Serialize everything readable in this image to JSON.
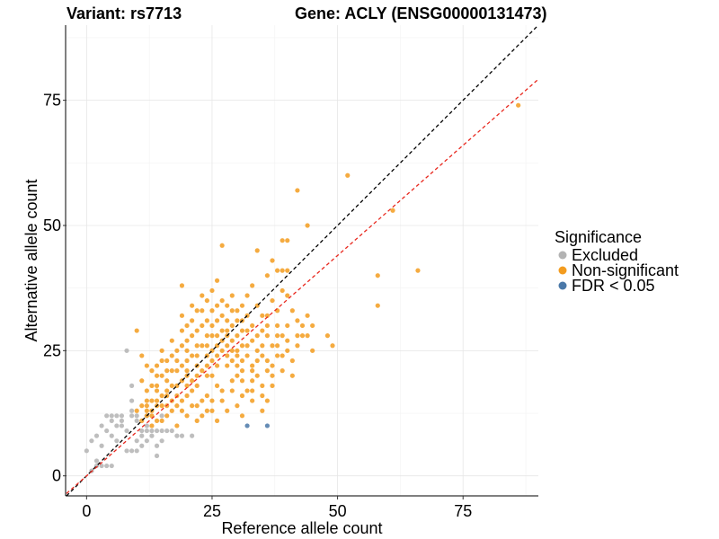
{
  "chart_data": {
    "type": "scatter",
    "title_left": "Variant: rs7713",
    "title_right": "Gene: ACLY (ENSG00000131473)",
    "xlabel": "Reference allele count",
    "ylabel": "Alternative allele count",
    "xlim": [
      -4,
      90
    ],
    "ylim": [
      -4,
      90
    ],
    "xticks": [
      0,
      25,
      50,
      75
    ],
    "yticks": [
      0,
      25,
      50,
      75
    ],
    "grid": true,
    "legend": {
      "title": "Significance",
      "position": "right",
      "entries": [
        {
          "label": "Excluded",
          "color": "#b3b3b3"
        },
        {
          "label": "Non-significant",
          "color": "#f39c1f"
        },
        {
          "label": "FDR < 0.05",
          "color": "#4a78a8"
        }
      ]
    },
    "reference_lines": [
      {
        "name": "identity",
        "slope": 1,
        "intercept": 0,
        "color": "#000000"
      },
      {
        "name": "fit",
        "slope": 0.88,
        "intercept": 0,
        "color": "#e8281e"
      }
    ],
    "series": [
      {
        "name": "Excluded",
        "color": "#b3b3b3",
        "points": [
          [
            0,
            5
          ],
          [
            1,
            7
          ],
          [
            2,
            3
          ],
          [
            2,
            8
          ],
          [
            3,
            10
          ],
          [
            3,
            6
          ],
          [
            4,
            12
          ],
          [
            4,
            9
          ],
          [
            5,
            11
          ],
          [
            5,
            12
          ],
          [
            5,
            8
          ],
          [
            6,
            10
          ],
          [
            6,
            12
          ],
          [
            6,
            7
          ],
          [
            7,
            10
          ],
          [
            7,
            11
          ],
          [
            7,
            12
          ],
          [
            8,
            9
          ],
          [
            8,
            5
          ],
          [
            8,
            25
          ],
          [
            9,
            15
          ],
          [
            9,
            18
          ],
          [
            9,
            12
          ],
          [
            9,
            13
          ],
          [
            9,
            5
          ],
          [
            10,
            7
          ],
          [
            10,
            11
          ],
          [
            10,
            12
          ],
          [
            11,
            6
          ],
          [
            11,
            8
          ],
          [
            11,
            9
          ],
          [
            12,
            10
          ],
          [
            12,
            9
          ],
          [
            12,
            12
          ],
          [
            13,
            8
          ],
          [
            13,
            9
          ],
          [
            14,
            4
          ],
          [
            14,
            6
          ],
          [
            14,
            9
          ],
          [
            15,
            9
          ],
          [
            15,
            12
          ],
          [
            16,
            9
          ],
          [
            17,
            9
          ],
          [
            18,
            8
          ],
          [
            19,
            8
          ],
          [
            21,
            8
          ],
          [
            4,
            2
          ],
          [
            3,
            2
          ],
          [
            5,
            2
          ],
          [
            1,
            1
          ],
          [
            2,
            2
          ],
          [
            10,
            5
          ],
          [
            12,
            7
          ],
          [
            15,
            7
          ]
        ]
      },
      {
        "name": "Non-significant",
        "color": "#f39c1f",
        "points": [
          [
            86,
            74
          ],
          [
            61,
            53
          ],
          [
            52,
            60
          ],
          [
            42,
            57
          ],
          [
            39,
            47
          ],
          [
            40,
            47
          ],
          [
            44,
            50
          ],
          [
            66,
            41
          ],
          [
            58,
            40
          ],
          [
            58,
            34
          ],
          [
            49,
            26
          ],
          [
            48,
            28
          ],
          [
            44,
            28
          ],
          [
            45,
            30
          ],
          [
            45,
            25
          ],
          [
            43,
            30
          ],
          [
            42,
            31
          ],
          [
            41,
            33
          ],
          [
            40,
            36
          ],
          [
            39,
            37
          ],
          [
            38,
            41
          ],
          [
            39,
            41
          ],
          [
            40,
            41
          ],
          [
            36,
            40
          ],
          [
            37,
            43
          ],
          [
            34,
            45
          ],
          [
            27,
            46
          ],
          [
            38,
            33
          ],
          [
            37,
            35
          ],
          [
            33,
            38
          ],
          [
            31,
            34
          ],
          [
            29,
            36
          ],
          [
            26,
            39
          ],
          [
            24,
            35
          ],
          [
            22,
            33
          ],
          [
            19,
            38
          ],
          [
            10,
            29
          ],
          [
            11,
            24
          ],
          [
            12,
            22
          ],
          [
            31,
            12
          ],
          [
            35,
            13
          ],
          [
            33,
            15
          ],
          [
            36,
            15
          ],
          [
            32,
            17
          ],
          [
            37,
            20
          ],
          [
            36,
            21
          ],
          [
            34,
            25
          ],
          [
            35,
            26
          ],
          [
            38,
            24
          ],
          [
            39,
            28
          ],
          [
            40,
            30
          ],
          [
            41,
            23
          ],
          [
            43,
            28
          ],
          [
            42,
            26
          ],
          [
            25,
            20
          ],
          [
            25,
            25
          ],
          [
            25,
            30
          ],
          [
            20,
            20
          ],
          [
            20,
            25
          ],
          [
            20,
            30
          ],
          [
            30,
            20
          ],
          [
            30,
            25
          ],
          [
            30,
            28
          ],
          [
            22,
            22
          ],
          [
            24,
            24
          ],
          [
            26,
            26
          ],
          [
            28,
            28
          ],
          [
            18,
            18
          ],
          [
            16,
            16
          ],
          [
            14,
            14
          ],
          [
            12,
            12
          ],
          [
            15,
            20
          ],
          [
            13,
            18
          ],
          [
            17,
            24
          ],
          [
            19,
            26
          ],
          [
            21,
            28
          ],
          [
            23,
            30
          ],
          [
            27,
            32
          ],
          [
            29,
            30
          ],
          [
            31,
            29
          ],
          [
            33,
            27
          ],
          [
            35,
            29
          ],
          [
            28,
            22
          ],
          [
            26,
            18
          ],
          [
            24,
            16
          ],
          [
            22,
            14
          ],
          [
            20,
            12
          ],
          [
            18,
            10
          ],
          [
            16,
            12
          ],
          [
            14,
            11
          ],
          [
            13,
            15
          ],
          [
            12,
            17
          ],
          [
            11,
            19
          ],
          [
            15,
            23
          ],
          [
            17,
            21
          ],
          [
            19,
            19
          ],
          [
            21,
            17
          ],
          [
            23,
            15
          ],
          [
            25,
            13
          ],
          [
            27,
            15
          ],
          [
            29,
            17
          ],
          [
            31,
            19
          ],
          [
            33,
            21
          ],
          [
            34,
            23
          ],
          [
            32,
            24
          ],
          [
            30,
            22
          ],
          [
            28,
            24
          ],
          [
            26,
            22
          ],
          [
            24,
            20
          ],
          [
            22,
            18
          ],
          [
            20,
            16
          ],
          [
            18,
            14
          ],
          [
            16,
            14
          ],
          [
            14,
            17
          ],
          [
            13,
            21
          ],
          [
            15,
            25
          ],
          [
            17,
            27
          ],
          [
            19,
            29
          ],
          [
            21,
            31
          ],
          [
            23,
            33
          ],
          [
            25,
            33
          ],
          [
            27,
            29
          ],
          [
            29,
            27
          ],
          [
            31,
            26
          ],
          [
            33,
            30
          ],
          [
            35,
            32
          ],
          [
            36,
            30
          ],
          [
            32,
            32
          ],
          [
            28,
            34
          ],
          [
            26,
            31
          ],
          [
            24,
            28
          ],
          [
            22,
            26
          ],
          [
            20,
            23
          ],
          [
            18,
            21
          ],
          [
            16,
            19
          ],
          [
            14,
            20
          ],
          [
            12,
            15
          ],
          [
            10,
            13
          ],
          [
            11,
            14
          ],
          [
            13,
            13
          ],
          [
            15,
            16
          ],
          [
            17,
            18
          ],
          [
            19,
            22
          ],
          [
            21,
            24
          ],
          [
            23,
            26
          ],
          [
            25,
            28
          ],
          [
            27,
            27
          ],
          [
            29,
            25
          ],
          [
            31,
            23
          ],
          [
            33,
            22
          ],
          [
            35,
            24
          ],
          [
            37,
            26
          ],
          [
            38,
            28
          ],
          [
            36,
            28
          ],
          [
            34,
            28
          ],
          [
            32,
            29
          ],
          [
            30,
            31
          ],
          [
            28,
            31
          ],
          [
            26,
            28
          ],
          [
            24,
            26
          ],
          [
            22,
            24
          ],
          [
            20,
            21
          ],
          [
            18,
            23
          ],
          [
            16,
            21
          ],
          [
            14,
            18
          ],
          [
            12,
            14
          ],
          [
            11,
            11
          ],
          [
            13,
            10
          ],
          [
            15,
            11
          ],
          [
            17,
            13
          ],
          [
            19,
            15
          ],
          [
            21,
            19
          ],
          [
            23,
            21
          ],
          [
            25,
            23
          ],
          [
            27,
            25
          ],
          [
            29,
            23
          ],
          [
            31,
            21
          ],
          [
            33,
            19
          ],
          [
            35,
            18
          ],
          [
            37,
            22
          ],
          [
            39,
            24
          ],
          [
            40,
            27
          ],
          [
            38,
            30
          ],
          [
            36,
            32
          ],
          [
            34,
            34
          ],
          [
            32,
            36
          ],
          [
            30,
            33
          ],
          [
            28,
            29
          ],
          [
            26,
            24
          ],
          [
            24,
            22
          ],
          [
            22,
            20
          ],
          [
            20,
            18
          ],
          [
            18,
            16
          ],
          [
            16,
            17
          ],
          [
            14,
            15
          ],
          [
            12,
            13
          ],
          [
            19,
            32
          ],
          [
            21,
            34
          ],
          [
            23,
            36
          ],
          [
            25,
            37
          ],
          [
            27,
            35
          ],
          [
            29,
            33
          ],
          [
            31,
            31
          ],
          [
            24,
            31
          ],
          [
            22,
            29
          ],
          [
            20,
            27
          ],
          [
            18,
            25
          ],
          [
            16,
            23
          ],
          [
            14,
            22
          ],
          [
            26,
            34
          ],
          [
            28,
            26
          ],
          [
            30,
            24
          ],
          [
            32,
            26
          ],
          [
            34,
            20
          ],
          [
            36,
            23
          ],
          [
            38,
            26
          ],
          [
            23,
            12
          ],
          [
            25,
            15
          ],
          [
            27,
            17
          ],
          [
            29,
            19
          ],
          [
            31,
            16
          ],
          [
            33,
            17
          ],
          [
            26,
            11
          ],
          [
            28,
            13
          ],
          [
            30,
            14
          ],
          [
            22,
            11
          ],
          [
            24,
            13
          ],
          [
            21,
            14
          ],
          [
            19,
            13
          ],
          [
            17,
            15
          ],
          [
            15,
            14
          ],
          [
            13,
            12
          ],
          [
            40,
            25
          ],
          [
            42,
            28
          ],
          [
            44,
            32
          ],
          [
            41,
            20
          ],
          [
            39,
            21
          ],
          [
            37,
            18
          ],
          [
            35,
            16
          ]
        ]
      },
      {
        "name": "FDR < 0.05",
        "color": "#4a78a8",
        "points": [
          [
            32,
            10
          ],
          [
            36,
            10
          ]
        ]
      }
    ]
  }
}
